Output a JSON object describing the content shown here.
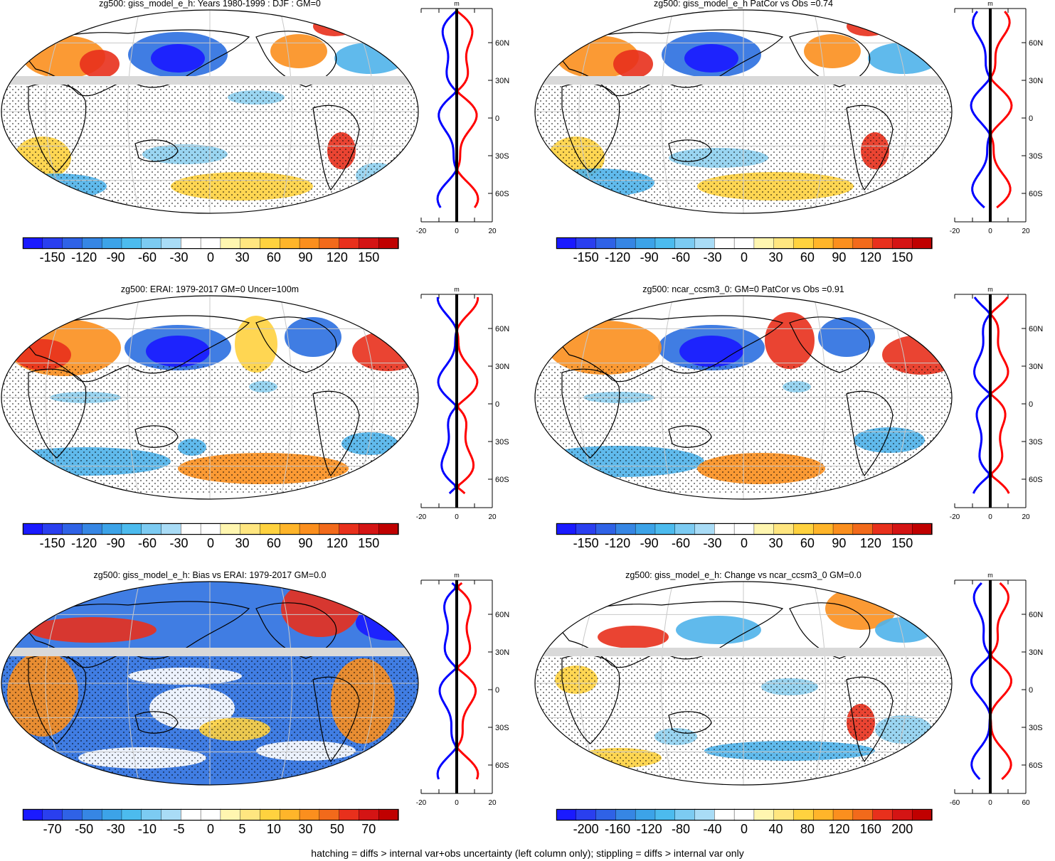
{
  "footer": "hatching = diffs > internal var+obs uncertainty (left column only); stippling = diffs > internal var only",
  "colors": {
    "deep_blue": "#1a1aff",
    "blue": "#2b6fe0",
    "light_blue": "#4fb3ea",
    "pale_blue": "#8fd0f0",
    "pale_yellow": "#fff2a0",
    "yellow": "#ffd23f",
    "orange": "#fb8f1e",
    "red": "#e8301c",
    "dark_red": "#c00000",
    "profile_pos": "#ff0000",
    "profile_neg": "#0000ff",
    "mask_gray": "#d9d9d9"
  },
  "panels": [
    {
      "id": "giss-djf",
      "title": "zg500: giss_model_e_h: Years 1980-1999 : DJF : GM=0",
      "colorbar_labels": [
        "-150",
        "-120",
        "-90",
        "-60",
        "-30",
        "0",
        "30",
        "60",
        "90",
        "120",
        "150"
      ],
      "profile": {
        "unit": "m",
        "lat_labels": [
          "60N",
          "30N",
          "0",
          "30S",
          "60S"
        ],
        "x_labels": [
          "-20",
          "0",
          "20"
        ]
      }
    },
    {
      "id": "giss-patcor",
      "title": "zg500: giss_model_e_h PatCor vs Obs =0.74",
      "colorbar_labels": [
        "-150",
        "-120",
        "-90",
        "-60",
        "-30",
        "0",
        "30",
        "60",
        "90",
        "120",
        "150"
      ],
      "profile": {
        "unit": "m",
        "lat_labels": [
          "60N",
          "30N",
          "0",
          "30S",
          "60S"
        ],
        "x_labels": [
          "-20",
          "0",
          "20"
        ]
      }
    },
    {
      "id": "erai",
      "title": "zg500: ERAI: 1979-2017 GM=0 Uncer=100m",
      "colorbar_labels": [
        "-150",
        "-120",
        "-90",
        "-60",
        "-30",
        "0",
        "30",
        "60",
        "90",
        "120",
        "150"
      ],
      "profile": {
        "unit": "m",
        "lat_labels": [
          "60N",
          "30N",
          "0",
          "30S",
          "60S"
        ],
        "x_labels": [
          "-20",
          "0",
          "20"
        ]
      }
    },
    {
      "id": "ncar",
      "title": "zg500: ncar_ccsm3_0: GM=0 PatCor vs Obs =0.91",
      "colorbar_labels": [
        "-150",
        "-120",
        "-90",
        "-60",
        "-30",
        "0",
        "30",
        "60",
        "90",
        "120",
        "150"
      ],
      "profile": {
        "unit": "m",
        "lat_labels": [
          "60N",
          "30N",
          "0",
          "30S",
          "60S"
        ],
        "x_labels": [
          "-20",
          "0",
          "20"
        ]
      }
    },
    {
      "id": "bias",
      "title": "zg500: giss_model_e_h: Bias vs ERAI: 1979-2017 GM=0.0",
      "colorbar_labels": [
        "-70",
        "-50",
        "-30",
        "-10",
        "-5",
        "0",
        "5",
        "10",
        "30",
        "50",
        "70"
      ],
      "profile": {
        "unit": "m",
        "lat_labels": [
          "60N",
          "30N",
          "0",
          "30S",
          "60S"
        ],
        "x_labels": [
          "-20",
          "0",
          "20"
        ]
      }
    },
    {
      "id": "change",
      "title": "zg500: giss_model_e_h: Change vs ncar_ccsm3_0 GM=0.0",
      "colorbar_labels": [
        "-200",
        "-160",
        "-120",
        "-80",
        "-40",
        "0",
        "40",
        "80",
        "120",
        "160",
        "200"
      ],
      "profile": {
        "unit": "m",
        "lat_labels": [
          "60N",
          "30N",
          "0",
          "30S",
          "60S"
        ],
        "x_labels": [
          "-60",
          "0",
          "60"
        ]
      }
    }
  ]
}
